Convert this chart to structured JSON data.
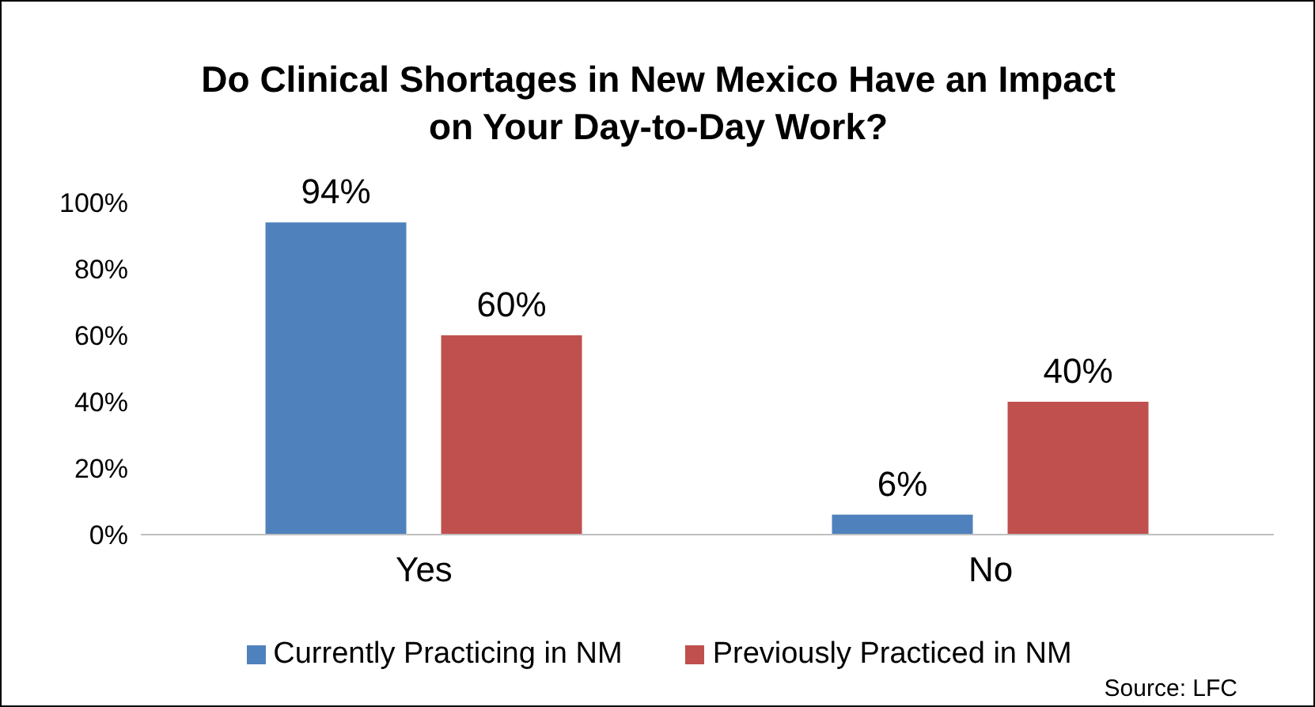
{
  "chart_data": {
    "type": "bar",
    "title": "Do Clinical Shortages in New Mexico Have an Impact on Your Day-to-Day Work?",
    "categories": [
      "Yes",
      "No"
    ],
    "series": [
      {
        "name": "Currently Practicing in NM",
        "color": "#4f81bd",
        "values": [
          94,
          6
        ],
        "value_labels": [
          "94%",
          "6%"
        ]
      },
      {
        "name": "Previously Practiced in NM",
        "color": "#c0504d",
        "values": [
          60,
          40
        ],
        "value_labels": [
          "60%",
          "40%"
        ]
      }
    ],
    "ylim": [
      0,
      100
    ],
    "yticks": [
      {
        "value": 0,
        "label": "0%"
      },
      {
        "value": 20,
        "label": "20%"
      },
      {
        "value": 40,
        "label": "40%"
      },
      {
        "value": 60,
        "label": "60%"
      },
      {
        "value": 80,
        "label": "80%"
      },
      {
        "value": 100,
        "label": "100%"
      }
    ],
    "grid": false,
    "legend": "bottom",
    "annotations": [
      "Source: LFC"
    ]
  }
}
